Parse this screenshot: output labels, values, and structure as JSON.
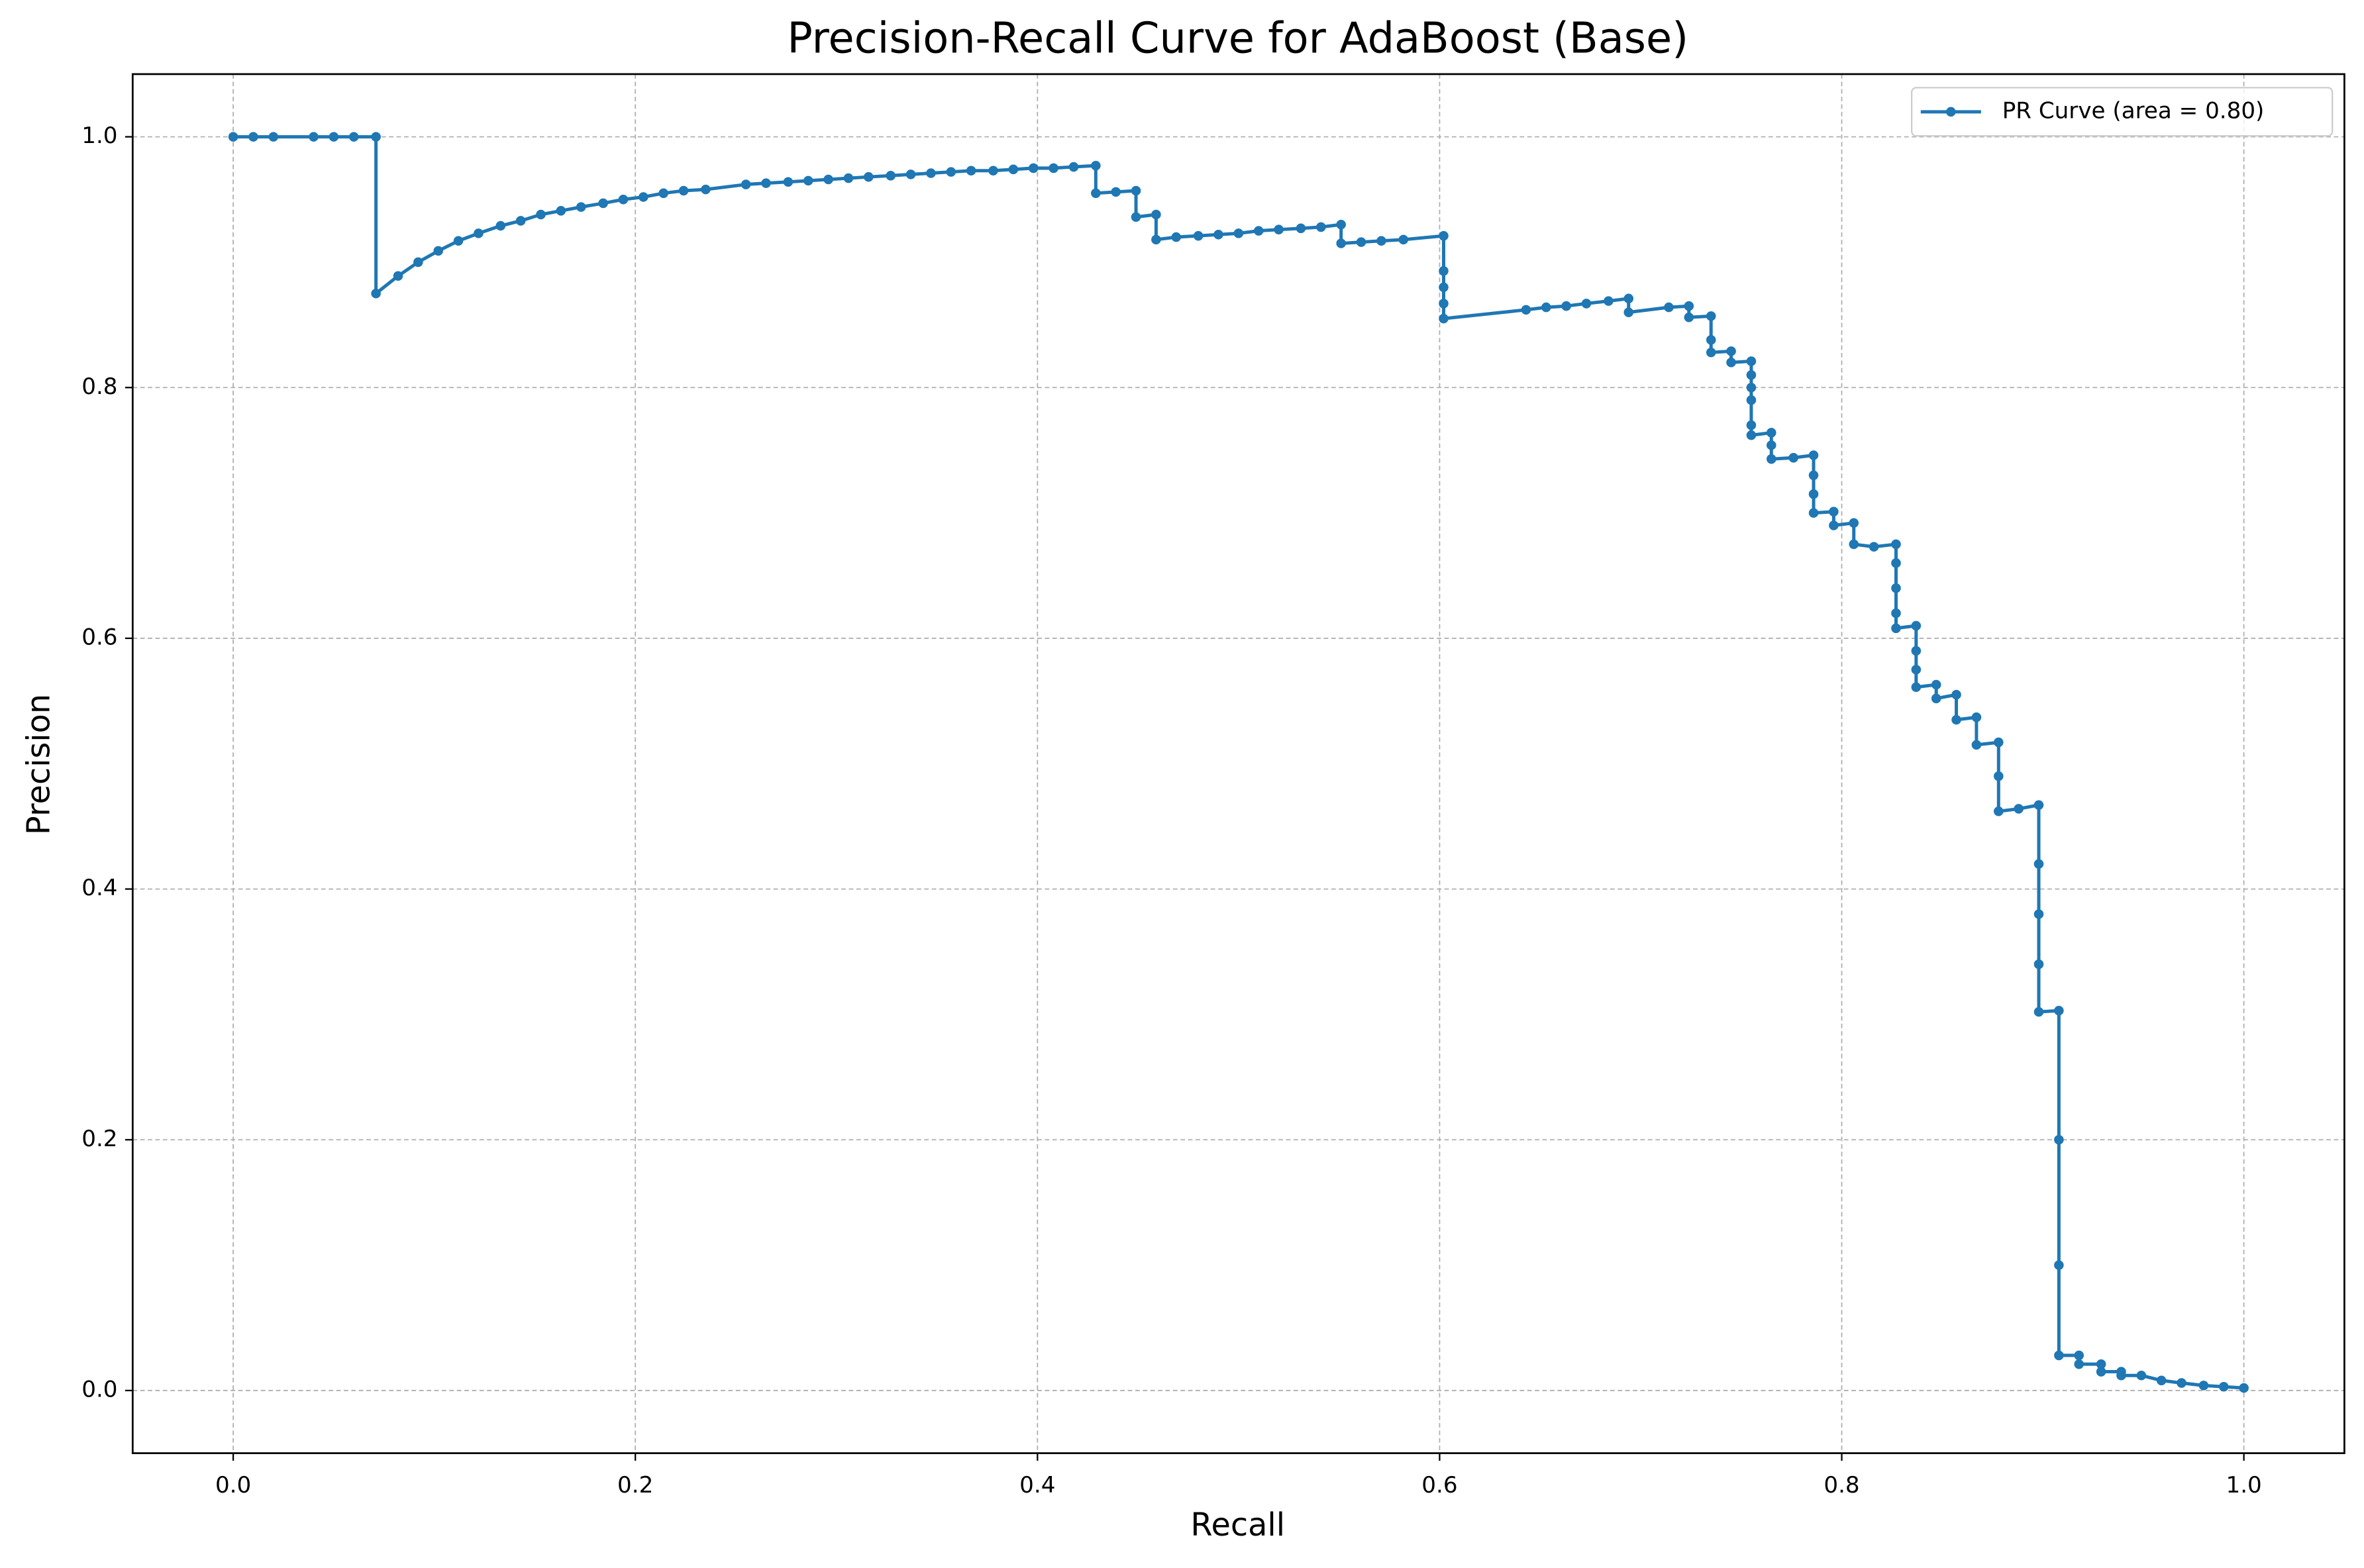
{
  "chart_data": {
    "type": "line",
    "title": "Precision-Recall Curve for AdaBoost (Base)",
    "x_label": "Recall",
    "y_label": "Precision",
    "xlim": [
      -0.05,
      1.05
    ],
    "ylim": [
      -0.05,
      1.05
    ],
    "xticks": [
      {
        "value": 0,
        "label": "0.0"
      },
      0.2,
      0.4,
      0.6,
      0.8,
      {
        "value": 1,
        "label": "1.0"
      }
    ],
    "yticks": [
      {
        "value": 0,
        "label": "0.0"
      },
      0.2,
      0.4,
      0.6,
      0.8,
      {
        "value": 1,
        "label": "1.0"
      }
    ],
    "grid": true,
    "legend": "upper right",
    "series": [
      {
        "name": "PR Curve (area = 0.80)",
        "color": "#1f77b4",
        "x": [
          0,
          0.01,
          0.02,
          0.04,
          0.05,
          0.06,
          0.071,
          0.071,
          0.082,
          0.092,
          0.102,
          0.112,
          0.122,
          0.133,
          0.143,
          0.153,
          0.163,
          0.173,
          0.184,
          0.194,
          0.204,
          0.214,
          0.224,
          0.235,
          0.255,
          0.265,
          0.276,
          0.286,
          0.296,
          0.306,
          0.316,
          0.327,
          0.337,
          0.347,
          0.357,
          0.367,
          0.378,
          0.388,
          0.398,
          0.408,
          0.418,
          0.429,
          0.429,
          0.439,
          0.449,
          0.449,
          0.459,
          0.459,
          0.469,
          0.48,
          0.49,
          0.5,
          0.51,
          0.52,
          0.531,
          0.541,
          0.551,
          0.551,
          0.561,
          0.571,
          0.582,
          0.602,
          0.602,
          0.602,
          0.602,
          0.602,
          0.643,
          0.653,
          0.663,
          0.673,
          0.684,
          0.694,
          0.694,
          0.714,
          0.724,
          0.724,
          0.735,
          0.735,
          0.735,
          0.745,
          0.745,
          0.755,
          0.755,
          0.755,
          0.755,
          0.755,
          0.755,
          0.765,
          0.765,
          0.765,
          0.776,
          0.786,
          0.786,
          0.786,
          0.786,
          0.796,
          0.796,
          0.806,
          0.806,
          0.816,
          0.827,
          0.827,
          0.827,
          0.827,
          0.827,
          0.837,
          0.837,
          0.837,
          0.837,
          0.847,
          0.847,
          0.857,
          0.857,
          0.867,
          0.867,
          0.878,
          0.878,
          0.878,
          0.888,
          0.898,
          0.898,
          0.898,
          0.898,
          0.898,
          0.908,
          0.908,
          0.908,
          0.908,
          0.918,
          0.918,
          0.929,
          0.929,
          0.939,
          0.939,
          0.949,
          0.959,
          0.969,
          0.98,
          0.99,
          1.0
        ],
        "values": [
          1,
          1,
          1,
          1,
          1,
          1,
          1,
          0.875,
          0.889,
          0.9,
          0.909,
          0.917,
          0.923,
          0.929,
          0.933,
          0.938,
          0.941,
          0.944,
          0.947,
          0.95,
          0.952,
          0.955,
          0.957,
          0.958,
          0.962,
          0.963,
          0.964,
          0.965,
          0.966,
          0.967,
          0.968,
          0.969,
          0.97,
          0.971,
          0.972,
          0.973,
          0.973,
          0.974,
          0.975,
          0.975,
          0.976,
          0.977,
          0.955,
          0.956,
          0.957,
          0.936,
          0.938,
          0.918,
          0.92,
          0.921,
          0.922,
          0.923,
          0.925,
          0.926,
          0.927,
          0.928,
          0.93,
          0.915,
          0.916,
          0.917,
          0.918,
          0.921,
          0.893,
          0.88,
          0.867,
          0.855,
          0.862,
          0.864,
          0.865,
          0.867,
          0.869,
          0.871,
          0.86,
          0.864,
          0.865,
          0.856,
          0.857,
          0.838,
          0.828,
          0.829,
          0.82,
          0.821,
          0.81,
          0.8,
          0.79,
          0.77,
          0.762,
          0.764,
          0.754,
          0.743,
          0.744,
          0.746,
          0.73,
          0.715,
          0.7,
          0.701,
          0.69,
          0.692,
          0.675,
          0.673,
          0.675,
          0.66,
          0.64,
          0.62,
          0.608,
          0.61,
          0.59,
          0.575,
          0.561,
          0.563,
          0.552,
          0.555,
          0.535,
          0.537,
          0.515,
          0.517,
          0.49,
          0.462,
          0.464,
          0.467,
          0.42,
          0.38,
          0.34,
          0.302,
          0.303,
          0.2,
          0.1,
          0.028,
          0.028,
          0.021,
          0.021,
          0.015,
          0.015,
          0.012,
          0.012,
          0.008,
          0.006,
          0.004,
          0.003,
          0.002
        ]
      }
    ]
  }
}
